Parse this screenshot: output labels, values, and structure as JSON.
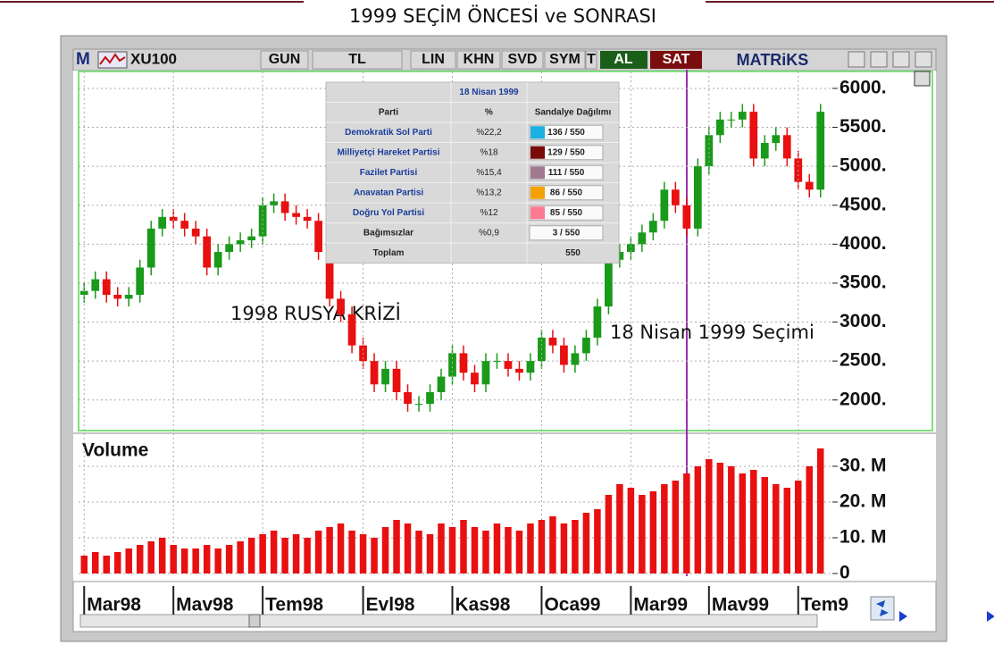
{
  "title": "1999 SEÇİM ÖNCESİ ve SONRASI",
  "toolbar": {
    "logo": "M",
    "symbol": "XU100",
    "buttons": [
      "GUN",
      "TL",
      "LIN",
      "KHN",
      "SVD",
      "SYM",
      "T"
    ],
    "buy": "AL",
    "sell": "SAT",
    "brand": "MATRiKS"
  },
  "table": {
    "title": "18 Nisan 1999",
    "columns": [
      "Parti",
      "%",
      "Sandalye Dağılımı"
    ],
    "rows": [
      {
        "party": "Demokratik Sol Parti",
        "pct": "%22,2",
        "seats": "136 / 550",
        "color": "#1ab0e0"
      },
      {
        "party": "Milliyetçi Hareket Partisi",
        "pct": "%18",
        "seats": "129 / 550",
        "color": "#7a0a0a"
      },
      {
        "party": "Fazilet Partisi",
        "pct": "%15,4",
        "seats": "111 / 550",
        "color": "#a07890"
      },
      {
        "party": "Anavatan Partisi",
        "pct": "%13,2",
        "seats": "86 / 550",
        "color": "#f5a000"
      },
      {
        "party": "Doğru Yol Partisi",
        "pct": "%12",
        "seats": "85 / 550",
        "color": "#ff7a90"
      },
      {
        "party": "Bağımsızlar",
        "pct": "%0,9",
        "seats": "3 / 550"
      }
    ],
    "total": {
      "label": "Toplam",
      "seats": "550"
    }
  },
  "annotations": [
    "1998 RUSYA KRİZİ",
    "18 Nisan 1999 Seçimi"
  ],
  "chart_data": [
    {
      "type": "candlestick",
      "categories": [
        "Mar98",
        null,
        null,
        null,
        null,
        null,
        null,
        null,
        "Mav98",
        null,
        null,
        null,
        null,
        null,
        null,
        null,
        "Tem98",
        null,
        null,
        null,
        null,
        null,
        null,
        null,
        null,
        "Evl98",
        null,
        null,
        null,
        null,
        null,
        null,
        null,
        "Kas98",
        null,
        null,
        null,
        null,
        null,
        null,
        null,
        "Oca99",
        null,
        null,
        null,
        null,
        null,
        null,
        null,
        "Mar99",
        null,
        null,
        null,
        null,
        null,
        null,
        "Mav99",
        null,
        null,
        null,
        null,
        null,
        null,
        null,
        "Tem9",
        null,
        null
      ],
      "open": [
        3350,
        3400,
        3550,
        3350,
        3300,
        3350,
        3700,
        4200,
        4350,
        4300,
        4200,
        4100,
        3700,
        3900,
        4000,
        4050,
        4100,
        4500,
        4550,
        4400,
        4350,
        4300,
        3900,
        3300,
        3100,
        2700,
        2500,
        2200,
        2400,
        2100,
        1950,
        1950,
        2100,
        2300,
        2600,
        2350,
        2200,
        2500,
        2500,
        2400,
        2350,
        2500,
        2800,
        2700,
        2450,
        2600,
        2800,
        3200,
        3800,
        3900,
        4000,
        4150,
        4300,
        4700,
        4500,
        4200,
        5000,
        5400,
        5600,
        5600,
        5700,
        5100,
        5300,
        5400,
        5100,
        4800,
        4700
      ],
      "high": [
        3500,
        3650,
        3650,
        3450,
        3450,
        3800,
        4300,
        4450,
        4450,
        4400,
        4300,
        4200,
        4000,
        4100,
        4150,
        4200,
        4600,
        4650,
        4650,
        4500,
        4450,
        4400,
        4000,
        3400,
        3200,
        2800,
        2600,
        2500,
        2500,
        2200,
        2050,
        2200,
        2400,
        2700,
        2700,
        2450,
        2600,
        2600,
        2600,
        2500,
        2600,
        2900,
        2900,
        2800,
        2700,
        2900,
        3300,
        3900,
        4000,
        4100,
        4250,
        4400,
        4800,
        4800,
        4600,
        5100,
        5500,
        5700,
        5700,
        5800,
        5800,
        5400,
        5500,
        5500,
        5200,
        4900,
        5800
      ],
      "low": [
        3250,
        3300,
        3250,
        3200,
        3200,
        3250,
        3600,
        4100,
        4200,
        4100,
        4000,
        3600,
        3600,
        3800,
        3900,
        3950,
        4000,
        4400,
        4300,
        4250,
        4200,
        3800,
        3200,
        3000,
        2600,
        2400,
        2100,
        2100,
        2000,
        1850,
        1850,
        1850,
        2000,
        2200,
        2250,
        2100,
        2100,
        2400,
        2300,
        2250,
        2250,
        2400,
        2600,
        2350,
        2350,
        2500,
        2700,
        3100,
        3700,
        3800,
        3900,
        4050,
        4200,
        4400,
        4100,
        4100,
        4900,
        5300,
        5500,
        5500,
        5000,
        5000,
        5200,
        5000,
        4700,
        4600,
        4600
      ],
      "close": [
        3400,
        3550,
        3350,
        3300,
        3350,
        3700,
        4200,
        4350,
        4300,
        4200,
        4100,
        3700,
        3900,
        4000,
        4050,
        4100,
        4500,
        4550,
        4400,
        4350,
        4300,
        3900,
        3300,
        3100,
        2700,
        2500,
        2200,
        2400,
        2100,
        1950,
        1950,
        2100,
        2300,
        2600,
        2350,
        2200,
        2500,
        2500,
        2400,
        2350,
        2500,
        2800,
        2700,
        2450,
        2600,
        2800,
        3200,
        3800,
        3900,
        4000,
        4150,
        4300,
        4700,
        4500,
        4200,
        5000,
        5400,
        5600,
        5600,
        5700,
        5100,
        5300,
        5400,
        5100,
        4800,
        4700,
        5700
      ],
      "up_color": "#1a9a1a",
      "down_color": "#e81010",
      "ylim": [
        1630,
        6160
      ],
      "yticks": [
        {
          "value": 2000,
          "label": "2000."
        },
        {
          "value": 2500,
          "label": "2500."
        },
        {
          "value": 3000,
          "label": "3000."
        },
        {
          "value": 3500,
          "label": "3500."
        },
        {
          "value": 4000,
          "label": "4000."
        },
        {
          "value": 4500,
          "label": "4500."
        },
        {
          "value": 5000,
          "label": "5000."
        },
        {
          "value": 5500,
          "label": "5500."
        },
        {
          "value": 6000,
          "label": "6000."
        }
      ],
      "grid": true
    },
    {
      "type": "bar",
      "title": "Volume",
      "values": [
        5,
        6,
        5,
        6,
        7,
        8,
        9,
        10,
        8,
        7,
        7,
        8,
        7,
        8,
        9,
        10,
        11,
        12,
        10,
        11,
        10,
        12,
        13,
        14,
        12,
        11,
        10,
        13,
        15,
        14,
        12,
        11,
        14,
        13,
        15,
        13,
        12,
        14,
        13,
        12,
        14,
        15,
        16,
        14,
        15,
        17,
        18,
        22,
        25,
        24,
        22,
        23,
        25,
        26,
        28,
        30,
        32,
        31,
        30,
        28,
        29,
        27,
        25,
        24,
        26,
        30,
        35
      ],
      "color": "#e81010",
      "ylim": [
        0,
        38.5
      ],
      "yticks": [
        {
          "value": 0,
          "label": "0"
        },
        {
          "value": 10,
          "label": "10. M"
        },
        {
          "value": 20,
          "label": "20. M"
        },
        {
          "value": 30,
          "label": "30. M"
        }
      ],
      "grid": true
    }
  ]
}
